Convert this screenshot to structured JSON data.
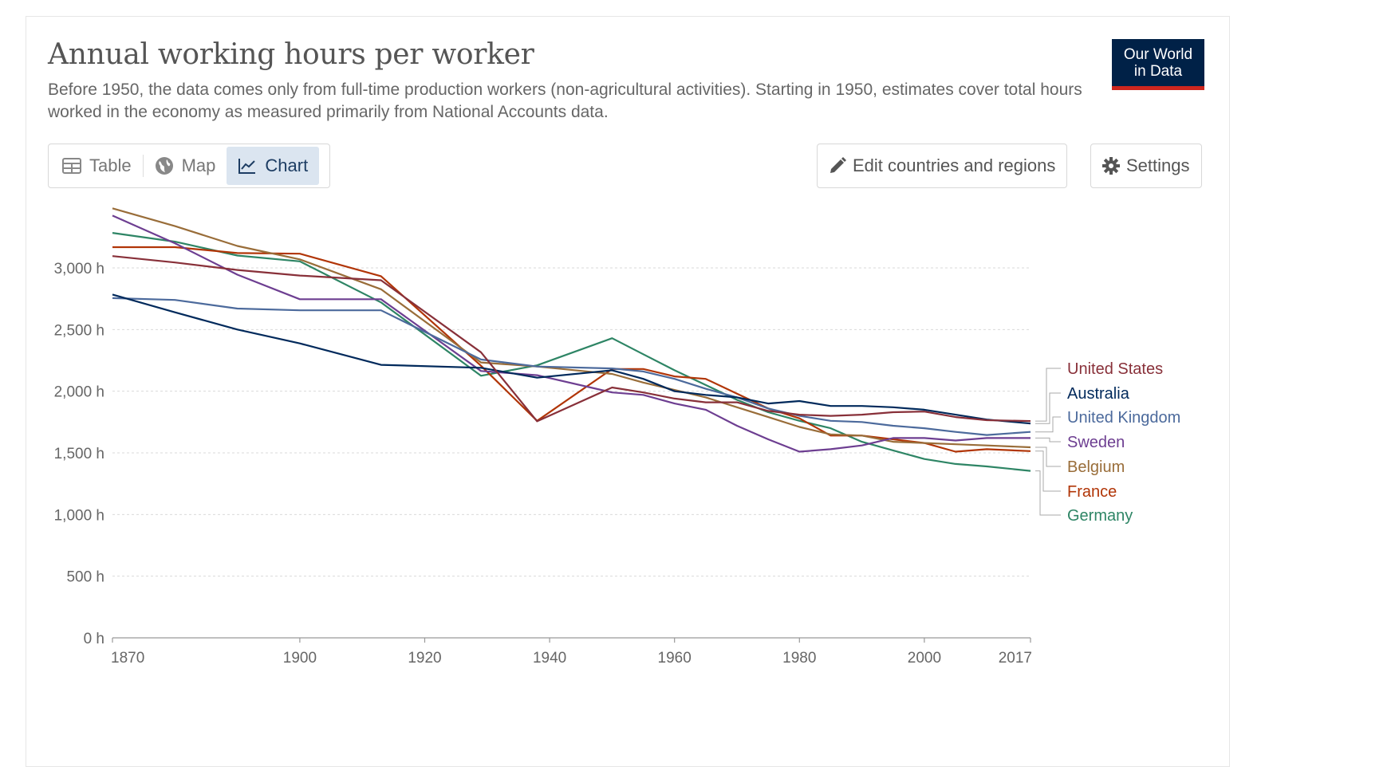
{
  "header": {
    "title": "Annual working hours per worker",
    "subtitle": "Before 1950, the data comes only from full-time production workers (non-agricultural activities). Starting in 1950, estimates cover total hours worked in the economy as measured primarily from National Accounts data.",
    "logo_line1": "Our World",
    "logo_line2": "in Data",
    "logo_colors": {
      "background": "#002147",
      "accent": "#ce261e"
    }
  },
  "tabs": [
    {
      "label": "Table",
      "icon": "table-icon",
      "active": false
    },
    {
      "label": "Map",
      "icon": "globe-icon",
      "active": false
    },
    {
      "label": "Chart",
      "icon": "line-chart-icon",
      "active": true
    }
  ],
  "actions": {
    "edit_label": "Edit countries and regions",
    "edit_icon": "pencil-icon",
    "settings_label": "Settings",
    "settings_icon": "gear-icon"
  },
  "chart_data": {
    "type": "line",
    "title": "Annual working hours per worker",
    "xlabel": "",
    "ylabel": "",
    "xlim": [
      1870,
      2017
    ],
    "ylim": [
      0,
      3500
    ],
    "x_ticks": [
      1870,
      1900,
      1920,
      1940,
      1960,
      1980,
      2000,
      2017
    ],
    "y_ticks": [
      0,
      500,
      1000,
      1500,
      2000,
      2500,
      3000
    ],
    "y_tick_labels": [
      "0 h",
      "500 h",
      "1,000 h",
      "1,500 h",
      "2,000 h",
      "2,500 h",
      "3,000 h"
    ],
    "grid": "horizontal dotted",
    "legend": "right, end-of-line labels",
    "series": [
      {
        "name": "United States",
        "color": "#883039",
        "points": [
          [
            1870,
            3096
          ],
          [
            1880,
            3044
          ],
          [
            1890,
            2983
          ],
          [
            1900,
            2938
          ],
          [
            1913,
            2900
          ],
          [
            1929,
            2316
          ],
          [
            1938,
            1756
          ],
          [
            1950,
            2030
          ],
          [
            1955,
            1990
          ],
          [
            1960,
            1940
          ],
          [
            1965,
            1910
          ],
          [
            1970,
            1910
          ],
          [
            1975,
            1840
          ],
          [
            1980,
            1810
          ],
          [
            1985,
            1800
          ],
          [
            1990,
            1810
          ],
          [
            1995,
            1830
          ],
          [
            2000,
            1835
          ],
          [
            2005,
            1790
          ],
          [
            2010,
            1765
          ],
          [
            2017,
            1758
          ]
        ]
      },
      {
        "name": "Australia",
        "color": "#00295b",
        "points": [
          [
            1870,
            2784
          ],
          [
            1880,
            2640
          ],
          [
            1890,
            2500
          ],
          [
            1900,
            2388
          ],
          [
            1913,
            2214
          ],
          [
            1929,
            2190
          ],
          [
            1938,
            2110
          ],
          [
            1950,
            2170
          ],
          [
            1955,
            2100
          ],
          [
            1960,
            2000
          ],
          [
            1965,
            1970
          ],
          [
            1970,
            1950
          ],
          [
            1975,
            1900
          ],
          [
            1980,
            1920
          ],
          [
            1985,
            1880
          ],
          [
            1990,
            1880
          ],
          [
            1995,
            1870
          ],
          [
            2000,
            1850
          ],
          [
            2005,
            1810
          ],
          [
            2010,
            1770
          ],
          [
            2017,
            1738
          ]
        ]
      },
      {
        "name": "United Kingdom",
        "color": "#4c6a9c",
        "points": [
          [
            1870,
            2755
          ],
          [
            1880,
            2740
          ],
          [
            1890,
            2670
          ],
          [
            1900,
            2656
          ],
          [
            1913,
            2656
          ],
          [
            1929,
            2257
          ],
          [
            1938,
            2200
          ],
          [
            1950,
            2185
          ],
          [
            1955,
            2160
          ],
          [
            1960,
            2100
          ],
          [
            1965,
            2020
          ],
          [
            1970,
            1950
          ],
          [
            1975,
            1860
          ],
          [
            1980,
            1800
          ],
          [
            1985,
            1760
          ],
          [
            1990,
            1750
          ],
          [
            1995,
            1720
          ],
          [
            2000,
            1700
          ],
          [
            2005,
            1670
          ],
          [
            2010,
            1645
          ],
          [
            2017,
            1670
          ]
        ]
      },
      {
        "name": "Sweden",
        "color": "#6d3e91",
        "points": [
          [
            1870,
            3424
          ],
          [
            1880,
            3200
          ],
          [
            1890,
            2945
          ],
          [
            1900,
            2746
          ],
          [
            1913,
            2746
          ],
          [
            1929,
            2164
          ],
          [
            1938,
            2130
          ],
          [
            1950,
            1990
          ],
          [
            1955,
            1970
          ],
          [
            1960,
            1900
          ],
          [
            1965,
            1850
          ],
          [
            1970,
            1720
          ],
          [
            1975,
            1610
          ],
          [
            1980,
            1510
          ],
          [
            1985,
            1530
          ],
          [
            1990,
            1560
          ],
          [
            1995,
            1620
          ],
          [
            2000,
            1620
          ],
          [
            2005,
            1600
          ],
          [
            2010,
            1620
          ],
          [
            2017,
            1620
          ]
        ]
      },
      {
        "name": "Belgium",
        "color": "#996d39",
        "points": [
          [
            1870,
            3483
          ],
          [
            1880,
            3339
          ],
          [
            1890,
            3178
          ],
          [
            1900,
            3069
          ],
          [
            1913,
            2827
          ],
          [
            1929,
            2233
          ],
          [
            1938,
            2200
          ],
          [
            1950,
            2140
          ],
          [
            1955,
            2070
          ],
          [
            1960,
            2010
          ],
          [
            1965,
            1950
          ],
          [
            1970,
            1870
          ],
          [
            1975,
            1790
          ],
          [
            1980,
            1710
          ],
          [
            1985,
            1650
          ],
          [
            1990,
            1640
          ],
          [
            1995,
            1590
          ],
          [
            2000,
            1580
          ],
          [
            2005,
            1570
          ],
          [
            2010,
            1560
          ],
          [
            2017,
            1545
          ]
        ]
      },
      {
        "name": "France",
        "color": "#b13507",
        "points": [
          [
            1870,
            3168
          ],
          [
            1880,
            3168
          ],
          [
            1890,
            3120
          ],
          [
            1900,
            3115
          ],
          [
            1913,
            2933
          ],
          [
            1929,
            2207
          ],
          [
            1938,
            1760
          ],
          [
            1950,
            2180
          ],
          [
            1955,
            2180
          ],
          [
            1960,
            2120
          ],
          [
            1965,
            2100
          ],
          [
            1970,
            1980
          ],
          [
            1975,
            1860
          ],
          [
            1980,
            1780
          ],
          [
            1985,
            1640
          ],
          [
            1990,
            1640
          ],
          [
            1995,
            1610
          ],
          [
            2000,
            1580
          ],
          [
            2005,
            1510
          ],
          [
            2010,
            1530
          ],
          [
            2017,
            1514
          ]
        ]
      },
      {
        "name": "Germany",
        "color": "#2e8565",
        "points": [
          [
            1870,
            3284
          ],
          [
            1880,
            3213
          ],
          [
            1890,
            3100
          ],
          [
            1900,
            3053
          ],
          [
            1913,
            2720
          ],
          [
            1929,
            2125
          ],
          [
            1938,
            2210
          ],
          [
            1950,
            2430
          ],
          [
            1955,
            2300
          ],
          [
            1960,
            2170
          ],
          [
            1965,
            2050
          ],
          [
            1970,
            1930
          ],
          [
            1975,
            1830
          ],
          [
            1980,
            1760
          ],
          [
            1985,
            1700
          ],
          [
            1990,
            1590
          ],
          [
            1995,
            1520
          ],
          [
            2000,
            1450
          ],
          [
            2005,
            1410
          ],
          [
            2010,
            1390
          ],
          [
            2017,
            1354
          ]
        ]
      }
    ]
  }
}
